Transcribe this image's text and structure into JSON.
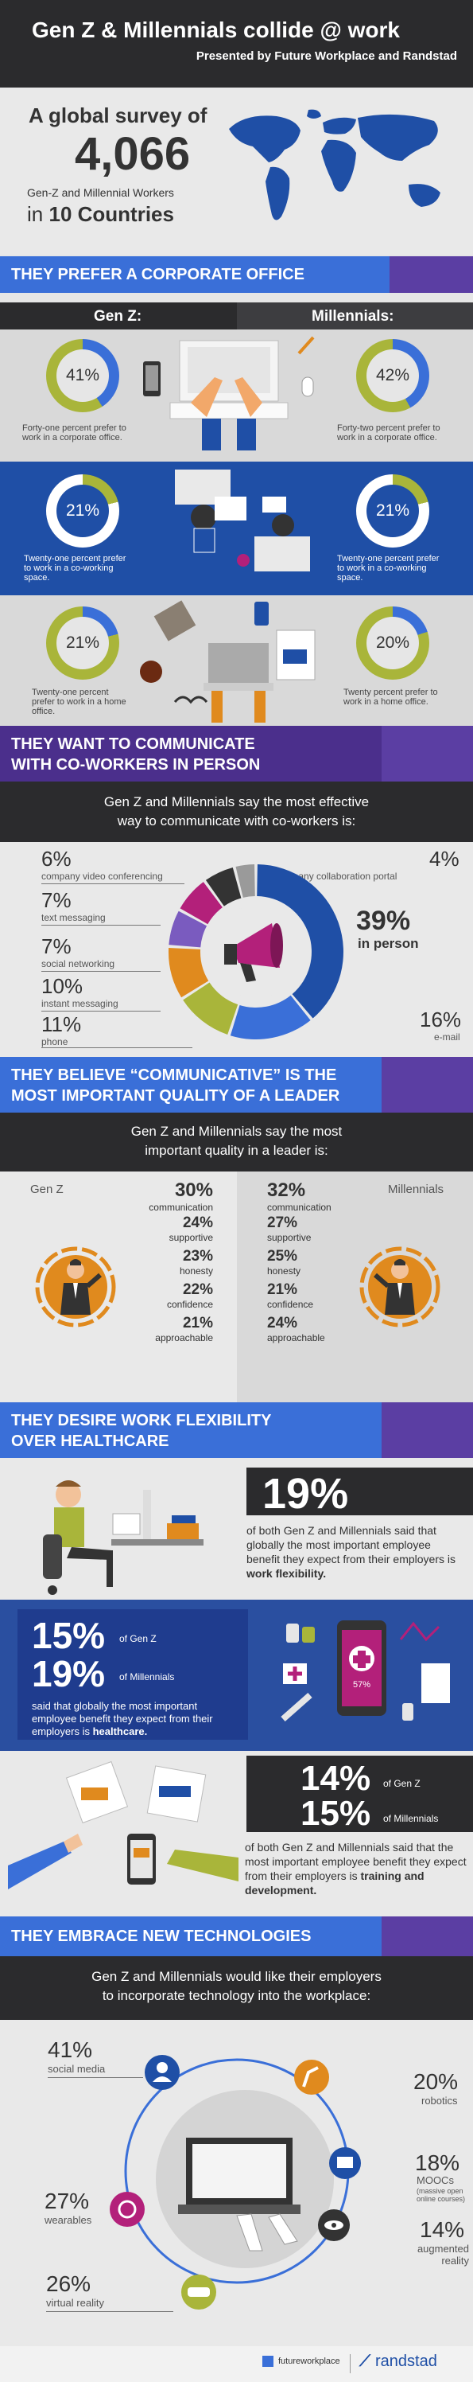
{
  "header": {
    "title": "Gen Z & Millennials collide @ work",
    "subtitle": "Presented by Future Workplace and Randstad"
  },
  "survey": {
    "line1": "A global survey of",
    "number": "4,066",
    "line2": "Gen-Z and Millennial Workers",
    "line3_pre": "in",
    "line3_bold": "10 Countries"
  },
  "office": {
    "banner": "THEY PREFER A CORPORATE OFFICE",
    "genz_label": "Gen Z:",
    "mill_label": "Millennials:",
    "rows": [
      {
        "genz_pct": "41%",
        "genz_value": 41,
        "genz_text": "Forty-one percent prefer to work in a corporate office.",
        "mill_pct": "42%",
        "mill_value": 42,
        "mill_text": "Forty-two percent prefer to work in a corporate office."
      },
      {
        "genz_pct": "21%",
        "genz_value": 21,
        "genz_text": "Twenty-one percent prefer to work in a co-working space.",
        "mill_pct": "21%",
        "mill_value": 21,
        "mill_text": "Twenty-one percent prefer to work in a co-working space."
      },
      {
        "genz_pct": "21%",
        "genz_value": 21,
        "genz_text": "Twenty-one percent prefer to work in a home office.",
        "mill_pct": "20%",
        "mill_value": 20,
        "mill_text": "Twenty percent prefer to work in a home office."
      }
    ]
  },
  "communicate": {
    "banner_l1": "THEY WANT TO COMMUNICATE",
    "banner_l2": "WITH CO-WORKERS IN PERSON",
    "intro_l1": "Gen Z and Millennials say the most effective",
    "intro_l2": "way to communicate with co-workers is:",
    "items": [
      {
        "pct": "6%",
        "label": "company video conferencing"
      },
      {
        "pct": "7%",
        "label": "text messaging"
      },
      {
        "pct": "7%",
        "label": "social networking"
      },
      {
        "pct": "10%",
        "label": "instant messaging"
      },
      {
        "pct": "11%",
        "label": "phone"
      },
      {
        "pct": "4%",
        "label": "company collaboration portal"
      },
      {
        "pct": "39%",
        "label": "in person"
      },
      {
        "pct": "16%",
        "label": "e-mail"
      }
    ]
  },
  "leader": {
    "banner_l1": "THEY BELIEVE “COMMUNICATIVE” IS THE",
    "banner_l2": "MOST IMPORTANT QUALITY OF A LEADER",
    "intro_l1": "Gen Z and Millennials say the most",
    "intro_l2": "important quality in a leader is:",
    "genz_label": "Gen Z",
    "mill_label": "Millennials",
    "genz": [
      {
        "pct": "30%",
        "label": "communication"
      },
      {
        "pct": "24%",
        "label": "supportive"
      },
      {
        "pct": "23%",
        "label": "honesty"
      },
      {
        "pct": "22%",
        "label": "confidence"
      },
      {
        "pct": "21%",
        "label": "approachable"
      }
    ],
    "mill": [
      {
        "pct": "32%",
        "label": "communication"
      },
      {
        "pct": "27%",
        "label": "supportive"
      },
      {
        "pct": "25%",
        "label": "honesty"
      },
      {
        "pct": "21%",
        "label": "confidence"
      },
      {
        "pct": "24%",
        "label": "approachable"
      }
    ]
  },
  "flex": {
    "banner_l1": "THEY DESIRE WORK FLEXIBILITY",
    "banner_l2": "OVER HEALTHCARE",
    "stat1_pct": "19%",
    "stat1_text": "of both Gen Z and Millennials said that globally the most important employee benefit they expect from their employers is",
    "stat1_bold": "work flexibility.",
    "stat2_pct_a": "15%",
    "stat2_lbl_a": "of Gen Z",
    "stat2_pct_b": "19%",
    "stat2_lbl_b": "of Millennials",
    "stat2_text": "said that globally the most important employee benefit they expect from their employers is",
    "stat2_bold": "healthcare.",
    "phone_pct": "57%",
    "stat3_pct_a": "14%",
    "stat3_lbl_a": "of Gen Z",
    "stat3_pct_b": "15%",
    "stat3_lbl_b": "of Millennials",
    "stat3_text": "of both Gen Z and Millennials said that the most important employee benefit they expect from their employers is",
    "stat3_bold": "training and development."
  },
  "tech": {
    "banner": "THEY EMBRACE NEW TECHNOLOGIES",
    "intro_l1": "Gen Z and Millennials would like their employers",
    "intro_l2": "to incorporate technology into the workplace:",
    "items": [
      {
        "pct": "41%",
        "label": "social media"
      },
      {
        "pct": "27%",
        "label": "wearables"
      },
      {
        "pct": "26%",
        "label": "virtual reality"
      },
      {
        "pct": "20%",
        "label": "robotics"
      },
      {
        "pct": "18%",
        "label": "MOOCs",
        "note": "(massive open online courses)"
      },
      {
        "pct": "14%",
        "label": "augmented reality"
      }
    ]
  },
  "footer": {
    "logo1": "futureworkplace",
    "logo2": "randstad"
  },
  "colors": {
    "blue": "#1f4fa6",
    "lightblue": "#3a6fd8",
    "purple": "#5b3ea3",
    "dark": "#2b2b2d",
    "olive": "#a9b53a",
    "magenta": "#b3207a",
    "orange": "#e08a1e"
  }
}
